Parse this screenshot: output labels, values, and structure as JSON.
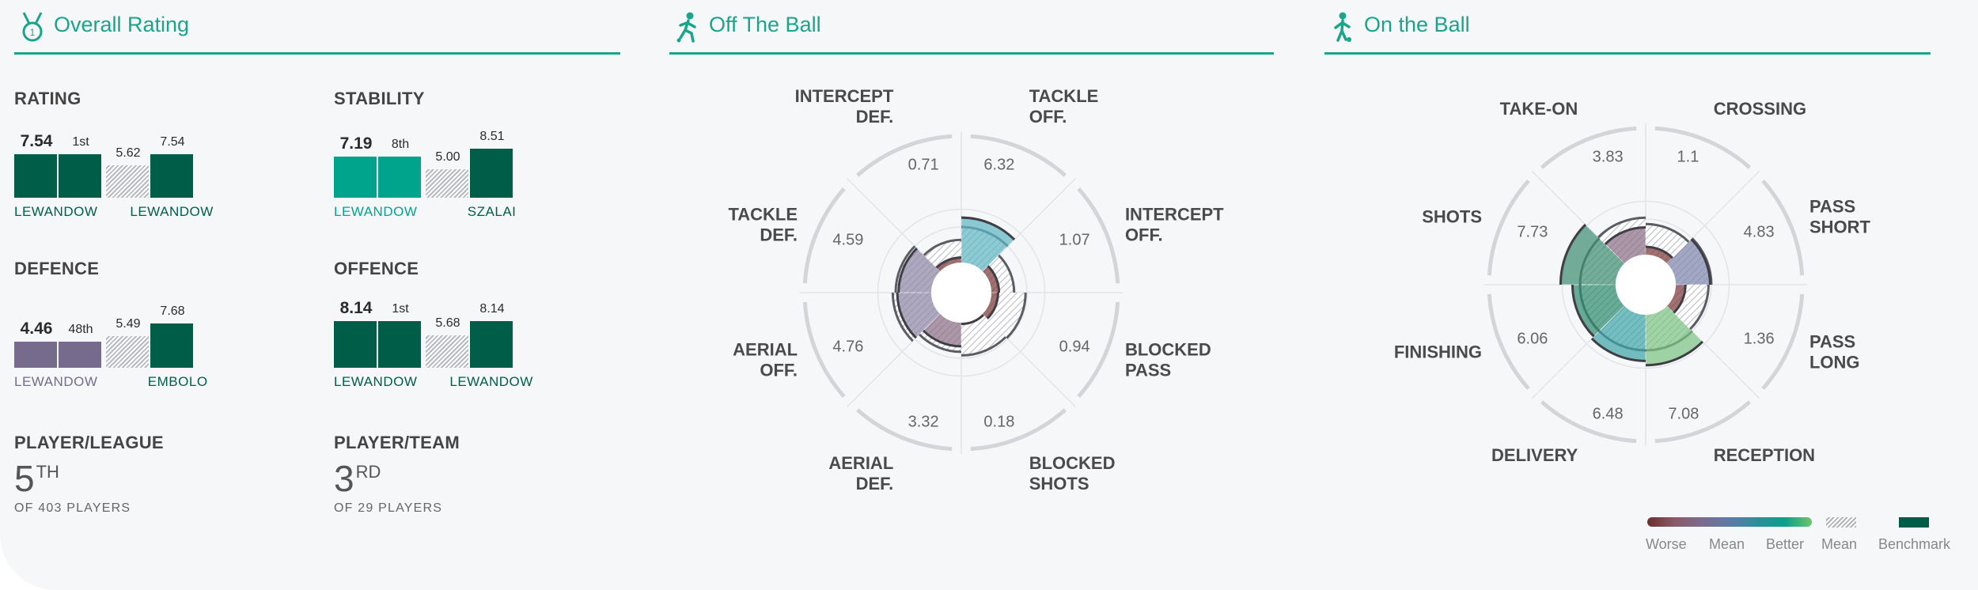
{
  "colors": {
    "accent": "#18a58a",
    "benchmark": "#005e48",
    "better": "#00a48c",
    "mean_purple": "#766b8c",
    "worse": "#7d3a3a"
  },
  "sections": {
    "overall": {
      "title": "Overall Rating",
      "icon": "medal-icon"
    },
    "off_ball": {
      "title": "Off The Ball",
      "icon": "running-player-icon"
    },
    "on_ball": {
      "title": "On the Ball",
      "icon": "dribbling-player-icon"
    }
  },
  "metrics": [
    {
      "key": "rating",
      "label": "RATING",
      "player_value": "7.54",
      "rank": "1st",
      "mean": "5.62",
      "benchmark": "7.54",
      "player_name": "LEWANDOW",
      "benchmark_name": "LEWANDOW",
      "player_color": "#005e48",
      "name_color": "#005e48",
      "bench_name_color": "#005e48"
    },
    {
      "key": "stability",
      "label": "STABILITY",
      "player_value": "7.19",
      "rank": "8th",
      "mean": "5.00",
      "benchmark": "8.51",
      "player_name": "LEWANDOW",
      "benchmark_name": "SZALAI",
      "player_color": "#00a48c",
      "name_color": "#00a48c",
      "bench_name_color": "#005e48"
    },
    {
      "key": "defence",
      "label": "DEFENCE",
      "player_value": "4.46",
      "rank": "48th",
      "mean": "5.49",
      "benchmark": "7.68",
      "player_name": "LEWANDOW",
      "benchmark_name": "EMBOLO",
      "player_color": "#766b8c",
      "name_color": "#766b8c",
      "bench_name_color": "#005e48"
    },
    {
      "key": "offence",
      "label": "OFFENCE",
      "player_value": "8.14",
      "rank": "1st",
      "mean": "5.68",
      "benchmark": "8.14",
      "player_name": "LEWANDOW",
      "benchmark_name": "LEWANDOW",
      "player_color": "#005e48",
      "name_color": "#005e48",
      "bench_name_color": "#005e48"
    }
  ],
  "rankings": [
    {
      "label": "PLAYER/LEAGUE",
      "rank": "5",
      "suffix": "TH",
      "sub": "OF 403 PLAYERS"
    },
    {
      "label": "PLAYER/TEAM",
      "rank": "3",
      "suffix": "RD",
      "sub": "OF 29 PLAYERS"
    }
  ],
  "off_ball_radar": [
    {
      "label": [
        "TACKLE",
        "OFF."
      ],
      "value": 6.32,
      "display": "6.32",
      "mean": 5.0,
      "color": "#5fb7c2"
    },
    {
      "label": [
        "INTERCEPT",
        "OFF."
      ],
      "value": 1.07,
      "display": "1.07",
      "mean": 3.2,
      "color": "#7d3a3a"
    },
    {
      "label": [
        "BLOCKED",
        "PASS"
      ],
      "value": 0.94,
      "display": "0.94",
      "mean": 4.8,
      "color": "#7d3a3a"
    },
    {
      "label": [
        "BLOCKED",
        "SHOTS"
      ],
      "value": 0.18,
      "display": "0.18",
      "mean": 4.6,
      "color": "#7d3a3a"
    },
    {
      "label": [
        "AERIAL",
        "DEF."
      ],
      "value": 3.32,
      "display": "3.32",
      "mean": 4.1,
      "color": "#8a6f86"
    },
    {
      "label": [
        "AERIAL",
        "OFF."
      ],
      "value": 4.76,
      "display": "4.76",
      "mean": 5.4,
      "color": "#8f86a6"
    },
    {
      "label": [
        "TACKLE",
        "DEF."
      ],
      "value": 4.59,
      "display": "4.59",
      "mean": 5.0,
      "color": "#8f86a6"
    },
    {
      "label": [
        "INTERCEPT",
        "DEF."
      ],
      "value": 0.71,
      "display": "0.71",
      "mean": 3.2,
      "color": "#7d3a3a"
    }
  ],
  "on_ball_radar": [
    {
      "label": [
        "CROSSING"
      ],
      "value": 1.1,
      "display": "1.1",
      "mean": 4.3,
      "color": "#7d3a3a"
    },
    {
      "label": [
        "PASS",
        "SHORT"
      ],
      "value": 4.83,
      "display": "4.83",
      "mean": 5.0,
      "color": "#7e86ad"
    },
    {
      "label": [
        "PASS",
        "LONG"
      ],
      "value": 1.36,
      "display": "1.36",
      "mean": 4.6,
      "color": "#7d3a3a"
    },
    {
      "label": [
        "RECEPTION"
      ],
      "value": 7.08,
      "display": "7.08",
      "mean": 5.0,
      "color": "#7cc282"
    },
    {
      "label": [
        "DELIVERY"
      ],
      "value": 6.48,
      "display": "6.48",
      "mean": 5.0,
      "color": "#3ea3a8"
    },
    {
      "label": [
        "FINISHING"
      ],
      "value": 6.06,
      "display": "6.06",
      "mean": 5.0,
      "color": "#2e8a6e"
    },
    {
      "label": [
        "SHOTS"
      ],
      "value": 7.73,
      "display": "7.73",
      "mean": 5.0,
      "color": "#3f8f73"
    },
    {
      "label": [
        "TAKE-ON"
      ],
      "value": 3.83,
      "display": "3.83",
      "mean": 5.2,
      "color": "#8a6f86"
    }
  ],
  "legend": {
    "scale_labels": [
      "Worse",
      "Mean",
      "Better"
    ],
    "mean_label": "Mean",
    "benchmark_label": "Benchmark",
    "gradient": [
      "#6b2f2f",
      "#8a5a6a",
      "#7a6b8e",
      "#5e7aa8",
      "#2d8f9a",
      "#0aa08a",
      "#6cc46a"
    ]
  }
}
